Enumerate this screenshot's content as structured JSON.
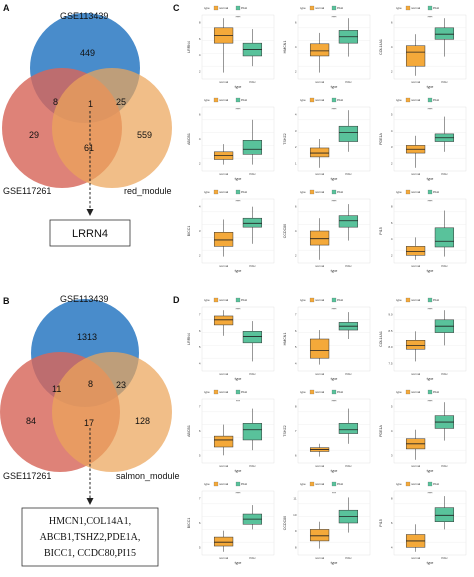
{
  "colors": {
    "blue_circle": "#3f86c8",
    "red_circle": "#d7665a",
    "orange_circle": "#eba55a",
    "normal_box": "#f4a93a",
    "pe_box": "#59c29b"
  },
  "panels": {
    "A": {
      "letter": "A",
      "labels": {
        "top": "GSE113439",
        "left": "GSE117261",
        "right": "red_module"
      },
      "regions": {
        "top_only": "449",
        "top_left": "8",
        "center": "1",
        "top_right": "25",
        "left_only": "29",
        "left_right": "61",
        "right_only": "559"
      },
      "result": "LRRN4"
    },
    "B": {
      "letter": "B",
      "labels": {
        "top": "GSE113439",
        "left": "GSE117261",
        "right": "salmon_module"
      },
      "regions": {
        "top_only": "1313",
        "top_left": "11",
        "center": "8",
        "top_right": "23",
        "left_only": "84",
        "left_right": "17",
        "right_only": "128"
      },
      "result_lines": [
        "HMCN1,COL14A1,",
        "ABCB1,TSHZ2,PDE1A,",
        "BICC1, CCDC80,PI15"
      ]
    },
    "C": {
      "letter": "C"
    },
    "D": {
      "letter": "D"
    }
  },
  "chart_data": [
    {
      "type": "boxplot",
      "panel": "C",
      "legend": {
        "title": "type",
        "entries": [
          "normal",
          "PAH"
        ]
      },
      "xlabel": "type",
      "categories": [
        "normal",
        "PAH"
      ],
      "genes": [
        {
          "gene": "LRRN4",
          "sig": "****",
          "yticks": [
            "2",
            "4",
            "6",
            "8"
          ],
          "boxes": [
            {
              "min": 0.1,
              "q1": 0.56,
              "med": 0.68,
              "q3": 0.8,
              "max": 0.95
            },
            {
              "min": 0.2,
              "q1": 0.36,
              "med": 0.46,
              "q3": 0.56,
              "max": 0.78
            }
          ]
        },
        {
          "gene": "HMCN1",
          "sig": "****",
          "yticks": [
            "2",
            "4",
            "6"
          ],
          "boxes": [
            {
              "min": 0.1,
              "q1": 0.36,
              "med": 0.44,
              "q3": 0.55,
              "max": 0.72
            },
            {
              "min": 0.35,
              "q1": 0.56,
              "med": 0.66,
              "q3": 0.76,
              "max": 0.95
            }
          ]
        },
        {
          "gene": "COL14A1",
          "sig": "****",
          "yticks": [
            "2",
            "4",
            "6"
          ],
          "boxes": [
            {
              "min": 0.05,
              "q1": 0.2,
              "med": 0.42,
              "q3": 0.52,
              "max": 0.7
            },
            {
              "min": 0.35,
              "q1": 0.62,
              "med": 0.7,
              "q3": 0.8,
              "max": 0.95
            }
          ]
        },
        {
          "gene": "ABCB1",
          "sig": "****",
          "yticks": [
            "2",
            "4",
            "6"
          ],
          "boxes": [
            {
              "min": 0.1,
              "q1": 0.18,
              "med": 0.24,
              "q3": 0.3,
              "max": 0.42
            },
            {
              "min": 0.1,
              "q1": 0.26,
              "med": 0.34,
              "q3": 0.48,
              "max": 0.8
            }
          ]
        },
        {
          "gene": "TSHZ2",
          "sig": "****",
          "yticks": [
            "1",
            "2",
            "3",
            "4"
          ],
          "boxes": [
            {
              "min": 0.05,
              "q1": 0.22,
              "med": 0.28,
              "q3": 0.36,
              "max": 0.5
            },
            {
              "min": 0.3,
              "q1": 0.46,
              "med": 0.6,
              "q3": 0.7,
              "max": 0.95
            }
          ]
        },
        {
          "gene": "PDE1A",
          "sig": "****",
          "yticks": [
            "2",
            "3",
            "4",
            "5"
          ],
          "boxes": [
            {
              "min": 0.05,
              "q1": 0.28,
              "med": 0.34,
              "q3": 0.4,
              "max": 0.55
            },
            {
              "min": 0.3,
              "q1": 0.46,
              "med": 0.52,
              "q3": 0.58,
              "max": 0.85
            }
          ]
        },
        {
          "gene": "BICC1",
          "sig": "****",
          "yticks": [
            "2",
            "3",
            "4"
          ],
          "boxes": [
            {
              "min": 0.1,
              "q1": 0.26,
              "med": 0.36,
              "q3": 0.48,
              "max": 0.68
            },
            {
              "min": 0.3,
              "q1": 0.56,
              "med": 0.62,
              "q3": 0.7,
              "max": 0.88
            }
          ]
        },
        {
          "gene": "CCDC80",
          "sig": "****",
          "yticks": [
            "2",
            "4",
            "6"
          ],
          "boxes": [
            {
              "min": 0.05,
              "q1": 0.28,
              "med": 0.38,
              "q3": 0.5,
              "max": 0.7
            },
            {
              "min": 0.35,
              "q1": 0.56,
              "med": 0.66,
              "q3": 0.74,
              "max": 0.92
            }
          ]
        },
        {
          "gene": "PI15",
          "sig": "****",
          "yticks": [
            "2",
            "4",
            "6",
            "8"
          ],
          "boxes": [
            {
              "min": 0.05,
              "q1": 0.12,
              "med": 0.18,
              "q3": 0.26,
              "max": 0.4
            },
            {
              "min": 0.1,
              "q1": 0.25,
              "med": 0.34,
              "q3": 0.55,
              "max": 0.82
            }
          ]
        }
      ]
    },
    {
      "type": "boxplot",
      "panel": "D",
      "legend": {
        "title": "type",
        "entries": [
          "normal",
          "PAH"
        ]
      },
      "xlabel": "type",
      "categories": [
        "normal",
        "PAH"
      ],
      "genes": [
        {
          "gene": "LRRN4",
          "sig": "****",
          "yticks": [
            "4",
            "5",
            "6",
            "7"
          ],
          "boxes": [
            {
              "min": 0.55,
              "q1": 0.72,
              "med": 0.8,
              "q3": 0.86,
              "max": 0.95
            },
            {
              "min": 0.15,
              "q1": 0.44,
              "med": 0.54,
              "q3": 0.62,
              "max": 0.78
            }
          ]
        },
        {
          "gene": "HMCN1",
          "sig": "****",
          "yticks": [
            "4",
            "5",
            "6",
            "7"
          ],
          "boxes": [
            {
              "min": 0.1,
              "q1": 0.2,
              "med": 0.32,
              "q3": 0.5,
              "max": 0.64
            },
            {
              "min": 0.5,
              "q1": 0.64,
              "med": 0.7,
              "q3": 0.76,
              "max": 0.92
            }
          ]
        },
        {
          "gene": "COL14A1",
          "sig": "****",
          "yticks": [
            "7.5",
            "8.0",
            "8.5",
            "9.0"
          ],
          "boxes": [
            {
              "min": 0.15,
              "q1": 0.34,
              "med": 0.4,
              "q3": 0.48,
              "max": 0.62
            },
            {
              "min": 0.4,
              "q1": 0.6,
              "med": 0.7,
              "q3": 0.8,
              "max": 0.95
            }
          ]
        },
        {
          "gene": "ABCB1",
          "sig": "***",
          "yticks": [
            "5",
            "6",
            "7"
          ],
          "boxes": [
            {
              "min": 0.12,
              "q1": 0.25,
              "med": 0.36,
              "q3": 0.42,
              "max": 0.6
            },
            {
              "min": 0.2,
              "q1": 0.36,
              "med": 0.52,
              "q3": 0.62,
              "max": 0.85
            }
          ]
        },
        {
          "gene": "TSHZ2",
          "sig": "****",
          "yticks": [
            "6",
            "7",
            "8"
          ],
          "boxes": [
            {
              "min": 0.1,
              "q1": 0.18,
              "med": 0.21,
              "q3": 0.24,
              "max": 0.3
            },
            {
              "min": 0.3,
              "q1": 0.46,
              "med": 0.52,
              "q3": 0.62,
              "max": 0.85
            }
          ]
        },
        {
          "gene": "PDE1A",
          "sig": "****",
          "yticks": [
            "3",
            "4",
            "5"
          ],
          "boxes": [
            {
              "min": 0.05,
              "q1": 0.22,
              "med": 0.3,
              "q3": 0.38,
              "max": 0.52
            },
            {
              "min": 0.35,
              "q1": 0.54,
              "med": 0.64,
              "q3": 0.74,
              "max": 0.95
            }
          ]
        },
        {
          "gene": "BICC1",
          "sig": "****",
          "yticks": [
            "5",
            "6",
            "7"
          ],
          "boxes": [
            {
              "min": 0.05,
              "q1": 0.14,
              "med": 0.2,
              "q3": 0.28,
              "max": 0.38
            },
            {
              "min": 0.4,
              "q1": 0.48,
              "med": 0.56,
              "q3": 0.64,
              "max": 0.78
            }
          ]
        },
        {
          "gene": "CCDC80",
          "sig": "***",
          "yticks": [
            "8",
            "9",
            "10",
            "11"
          ],
          "boxes": [
            {
              "min": 0.1,
              "q1": 0.22,
              "med": 0.3,
              "q3": 0.4,
              "max": 0.52
            },
            {
              "min": 0.35,
              "q1": 0.5,
              "med": 0.6,
              "q3": 0.7,
              "max": 0.9
            }
          ]
        },
        {
          "gene": "PI15",
          "sig": "****",
          "yticks": [
            "4",
            "6",
            "8"
          ],
          "boxes": [
            {
              "min": 0.05,
              "q1": 0.12,
              "med": 0.22,
              "q3": 0.32,
              "max": 0.48
            },
            {
              "min": 0.4,
              "q1": 0.52,
              "med": 0.62,
              "q3": 0.74,
              "max": 0.92
            }
          ]
        }
      ]
    }
  ]
}
